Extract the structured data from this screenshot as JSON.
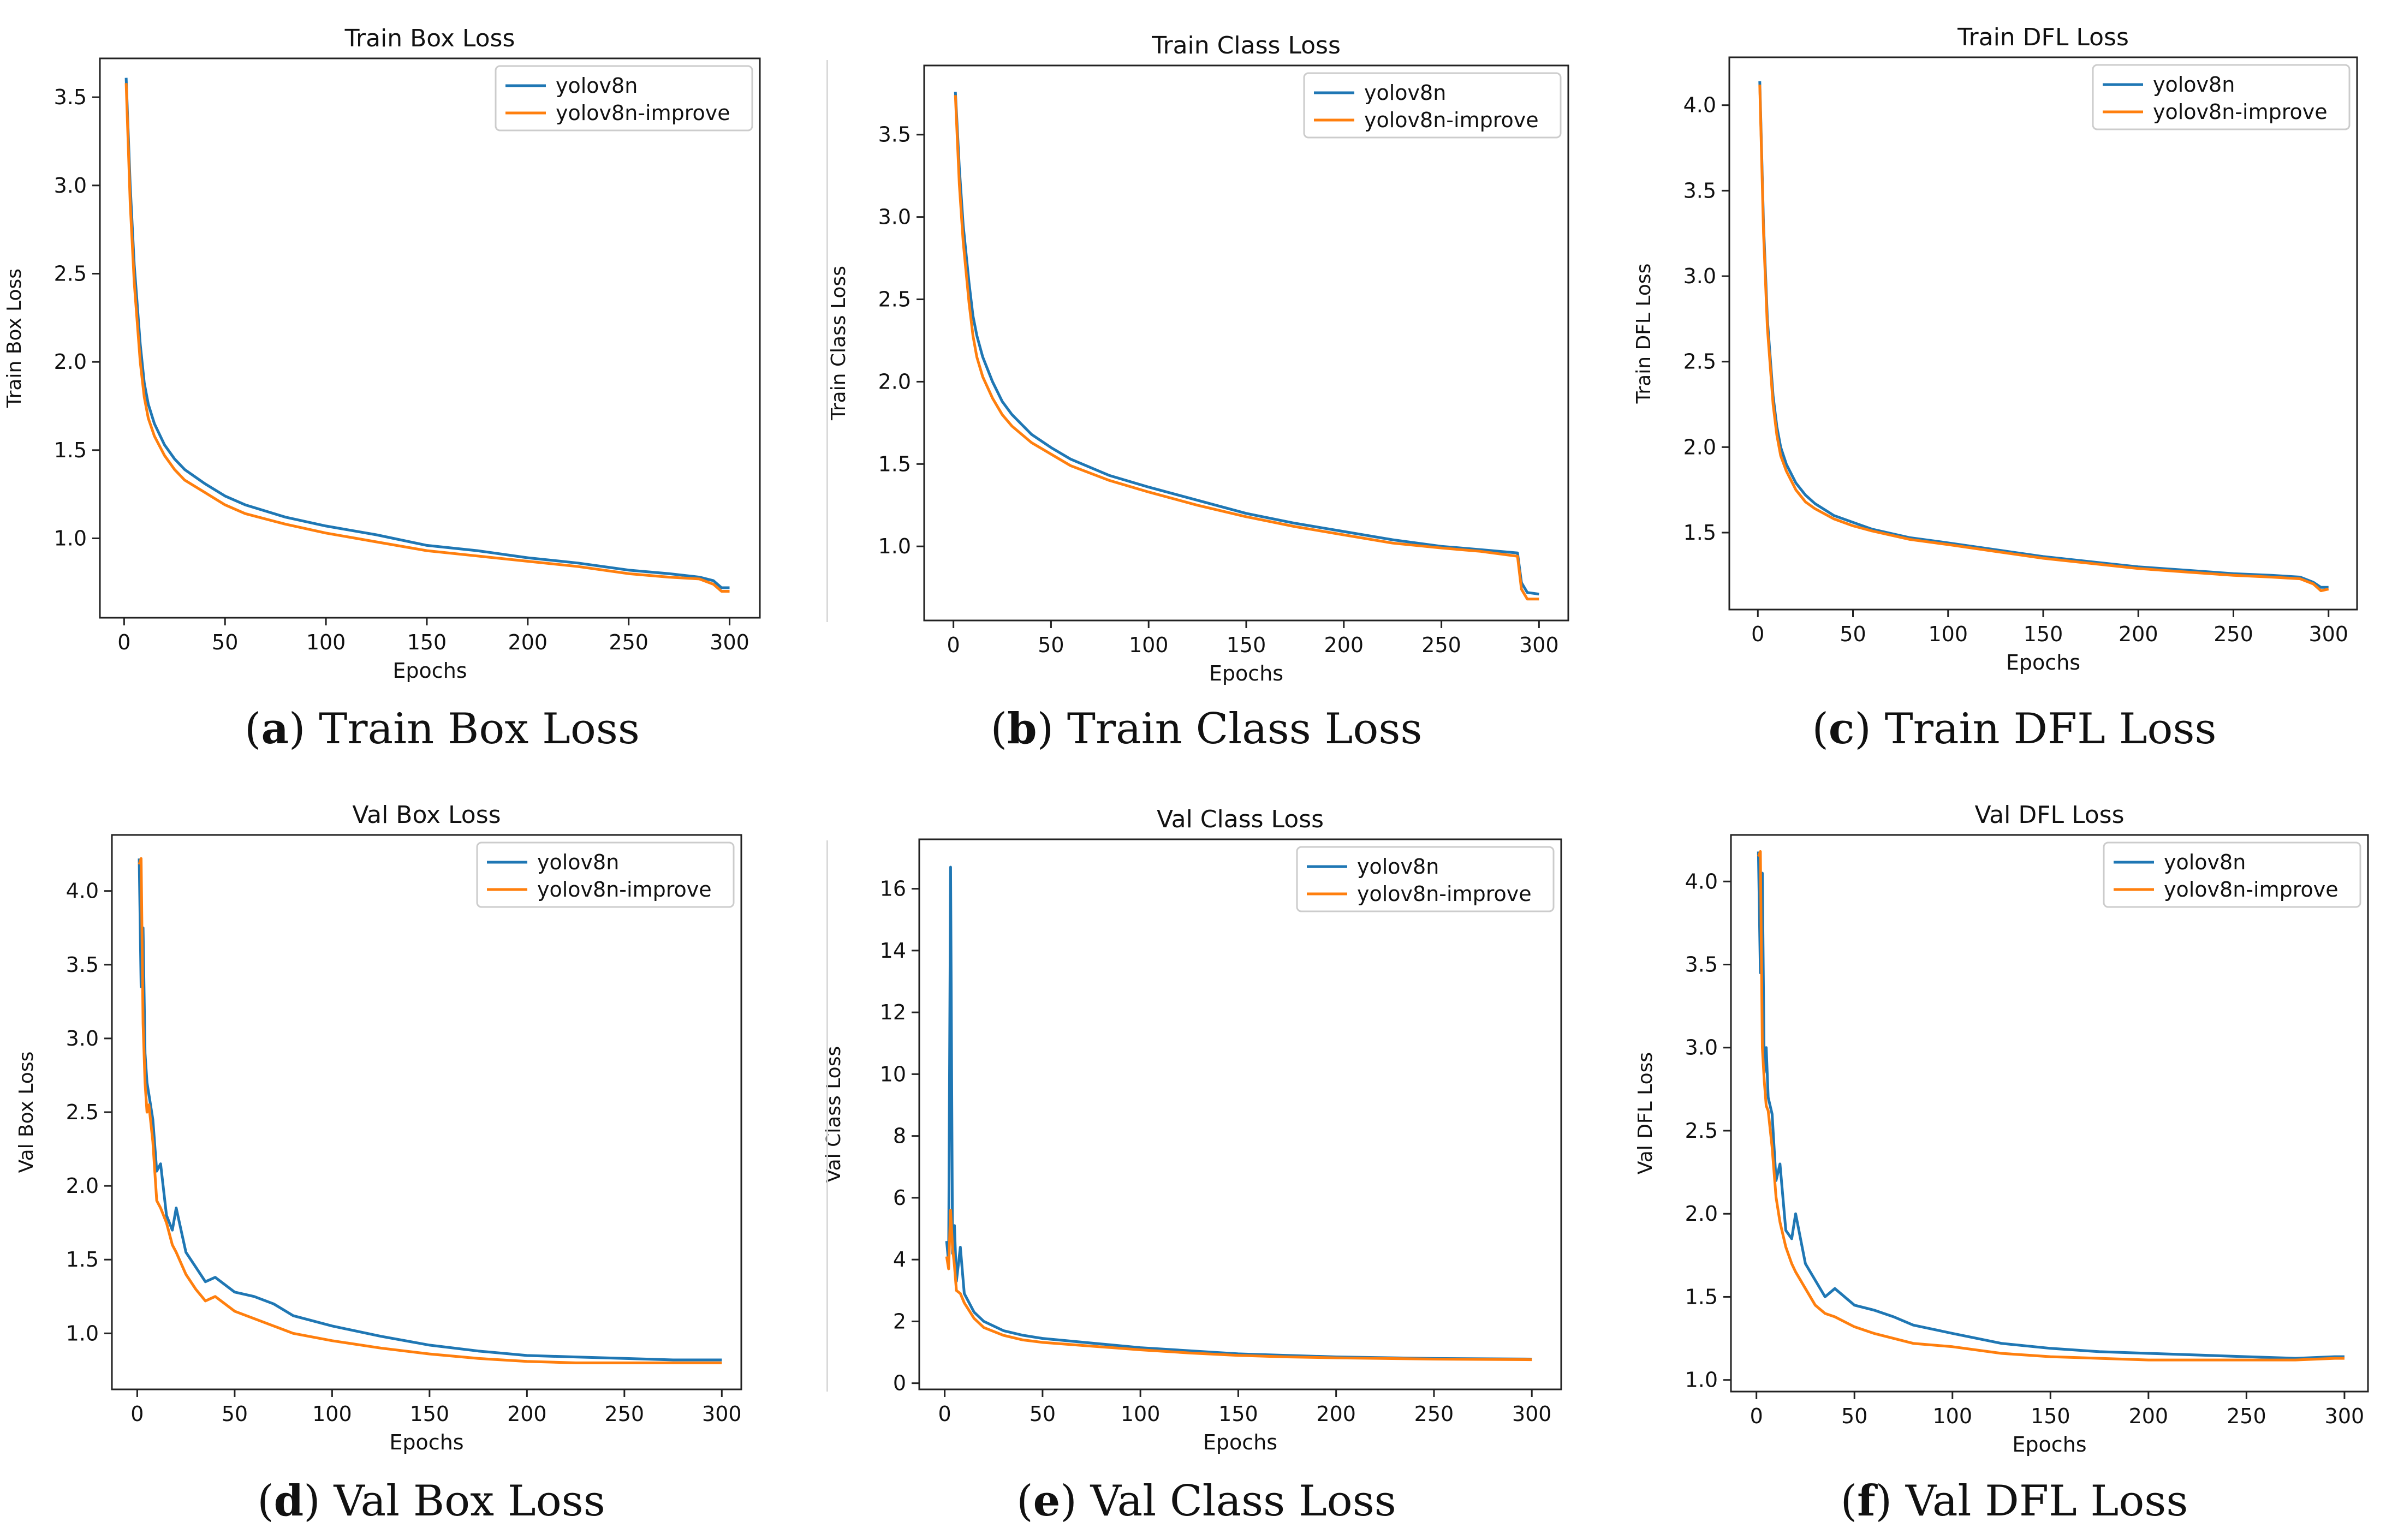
{
  "colors": {
    "yolov8n": "#1f77b4",
    "yolov8n_improve": "#ff7f0e"
  },
  "legend_labels": [
    "yolov8n",
    "yolov8n-improve"
  ],
  "panels": [
    {
      "letter": "a",
      "caption": "Train Box Loss"
    },
    {
      "letter": "b",
      "caption": "Train Class Loss"
    },
    {
      "letter": "c",
      "caption": "Train DFL Loss"
    },
    {
      "letter": "d",
      "caption": "Val Box Loss"
    },
    {
      "letter": "e",
      "caption": "Val Class Loss"
    },
    {
      "letter": "f",
      "caption": "Val DFL Loss"
    }
  ],
  "chart_data": [
    {
      "type": "line",
      "title": "Train Box Loss",
      "xlabel": "Epochs",
      "ylabel": "Train Box Loss",
      "xlim": [
        -12,
        315
      ],
      "ylim": [
        0.55,
        3.72
      ],
      "xticks": [
        0,
        50,
        100,
        150,
        200,
        250,
        300
      ],
      "yticks": [
        1.0,
        1.5,
        2.0,
        2.5,
        3.0,
        3.5
      ],
      "legend": "top-right",
      "series": [
        {
          "name": "yolov8n",
          "x": [
            1,
            3,
            5,
            8,
            10,
            12,
            15,
            20,
            25,
            30,
            40,
            50,
            60,
            80,
            100,
            125,
            150,
            175,
            200,
            225,
            250,
            270,
            285,
            292,
            296,
            300
          ],
          "y": [
            3.61,
            3.0,
            2.55,
            2.1,
            1.88,
            1.76,
            1.65,
            1.53,
            1.45,
            1.39,
            1.31,
            1.24,
            1.19,
            1.12,
            1.07,
            1.02,
            0.96,
            0.93,
            0.89,
            0.86,
            0.82,
            0.8,
            0.78,
            0.76,
            0.72,
            0.72
          ]
        },
        {
          "name": "yolov8n-improve",
          "x": [
            1,
            3,
            5,
            8,
            10,
            12,
            15,
            20,
            25,
            30,
            40,
            50,
            60,
            80,
            100,
            125,
            150,
            175,
            200,
            225,
            250,
            270,
            285,
            292,
            296,
            300
          ],
          "y": [
            3.58,
            2.9,
            2.45,
            2.0,
            1.8,
            1.68,
            1.58,
            1.47,
            1.39,
            1.33,
            1.26,
            1.19,
            1.14,
            1.08,
            1.03,
            0.98,
            0.93,
            0.9,
            0.87,
            0.84,
            0.8,
            0.78,
            0.77,
            0.74,
            0.7,
            0.7
          ]
        }
      ]
    },
    {
      "type": "line",
      "title": "Train Class Loss",
      "xlabel": "Epochs",
      "ylabel": "Train Class Loss",
      "xlim": [
        -15,
        315
      ],
      "ylim": [
        0.55,
        3.92
      ],
      "xticks": [
        0,
        50,
        100,
        150,
        200,
        250,
        300
      ],
      "yticks": [
        1.0,
        1.5,
        2.0,
        2.5,
        3.0,
        3.5
      ],
      "legend": "top-right",
      "series": [
        {
          "name": "yolov8n",
          "x": [
            1,
            3,
            5,
            8,
            10,
            12,
            15,
            20,
            25,
            30,
            40,
            50,
            60,
            80,
            100,
            125,
            150,
            175,
            200,
            225,
            250,
            270,
            289,
            291,
            294,
            300
          ],
          "y": [
            3.76,
            3.3,
            2.95,
            2.6,
            2.4,
            2.28,
            2.15,
            2.0,
            1.88,
            1.8,
            1.68,
            1.6,
            1.53,
            1.43,
            1.36,
            1.28,
            1.2,
            1.14,
            1.09,
            1.04,
            1.0,
            0.98,
            0.96,
            0.78,
            0.72,
            0.71
          ]
        },
        {
          "name": "yolov8n-improve",
          "x": [
            1,
            3,
            5,
            8,
            10,
            12,
            15,
            20,
            25,
            30,
            40,
            50,
            60,
            80,
            100,
            125,
            150,
            175,
            200,
            225,
            250,
            270,
            289,
            291,
            294,
            300
          ],
          "y": [
            3.74,
            3.2,
            2.85,
            2.48,
            2.28,
            2.15,
            2.03,
            1.9,
            1.8,
            1.73,
            1.63,
            1.56,
            1.49,
            1.4,
            1.33,
            1.25,
            1.18,
            1.12,
            1.07,
            1.02,
            0.99,
            0.97,
            0.94,
            0.74,
            0.68,
            0.68
          ]
        }
      ]
    },
    {
      "type": "line",
      "title": "Train DFL Loss",
      "xlabel": "Epochs",
      "ylabel": "Train DFL Loss",
      "xlim": [
        -15,
        315
      ],
      "ylim": [
        1.05,
        4.28
      ],
      "xticks": [
        0,
        50,
        100,
        150,
        200,
        250,
        300
      ],
      "yticks": [
        1.5,
        2.0,
        2.5,
        3.0,
        3.5,
        4.0
      ],
      "legend": "top-right",
      "series": [
        {
          "name": "yolov8n",
          "x": [
            1,
            3,
            5,
            8,
            10,
            12,
            15,
            20,
            25,
            30,
            40,
            50,
            60,
            80,
            100,
            125,
            150,
            175,
            200,
            225,
            250,
            270,
            285,
            292,
            296,
            300
          ],
          "y": [
            4.14,
            3.3,
            2.75,
            2.3,
            2.12,
            2.0,
            1.9,
            1.79,
            1.72,
            1.67,
            1.6,
            1.56,
            1.52,
            1.47,
            1.44,
            1.4,
            1.36,
            1.33,
            1.3,
            1.28,
            1.26,
            1.25,
            1.24,
            1.21,
            1.18,
            1.18
          ]
        },
        {
          "name": "yolov8n-improve",
          "x": [
            1,
            3,
            5,
            8,
            10,
            12,
            15,
            20,
            25,
            30,
            40,
            50,
            60,
            80,
            100,
            125,
            150,
            175,
            200,
            225,
            250,
            270,
            285,
            292,
            296,
            300
          ],
          "y": [
            4.12,
            3.25,
            2.7,
            2.25,
            2.07,
            1.95,
            1.86,
            1.75,
            1.68,
            1.64,
            1.58,
            1.54,
            1.51,
            1.46,
            1.43,
            1.39,
            1.35,
            1.32,
            1.29,
            1.27,
            1.25,
            1.24,
            1.23,
            1.2,
            1.16,
            1.17
          ]
        }
      ]
    },
    {
      "type": "line",
      "title": "Val Box Loss",
      "xlabel": "Epochs",
      "ylabel": "Val Box Loss",
      "xlim": [
        -13,
        310
      ],
      "ylim": [
        0.62,
        4.38
      ],
      "xticks": [
        0,
        50,
        100,
        150,
        200,
        250,
        300
      ],
      "yticks": [
        1.0,
        1.5,
        2.0,
        2.5,
        3.0,
        3.5,
        4.0
      ],
      "legend": "top-right",
      "series": [
        {
          "name": "yolov8n",
          "x": [
            1,
            2,
            3,
            4,
            5,
            6,
            8,
            10,
            12,
            15,
            18,
            20,
            25,
            30,
            35,
            40,
            50,
            60,
            70,
            80,
            100,
            125,
            150,
            175,
            200,
            225,
            250,
            275,
            300
          ],
          "y": [
            4.22,
            3.35,
            3.75,
            2.9,
            2.7,
            2.62,
            2.45,
            2.1,
            2.15,
            1.8,
            1.7,
            1.85,
            1.55,
            1.45,
            1.35,
            1.38,
            1.28,
            1.25,
            1.2,
            1.12,
            1.05,
            0.98,
            0.92,
            0.88,
            0.85,
            0.84,
            0.83,
            0.82,
            0.82
          ]
        },
        {
          "name": "yolov8n-improve",
          "x": [
            1,
            2,
            3,
            4,
            5,
            6,
            8,
            10,
            12,
            15,
            18,
            20,
            25,
            30,
            35,
            40,
            50,
            60,
            70,
            80,
            100,
            125,
            150,
            175,
            200,
            225,
            250,
            275,
            300
          ],
          "y": [
            4.18,
            4.22,
            3.1,
            2.7,
            2.5,
            2.55,
            2.3,
            1.9,
            1.85,
            1.75,
            1.6,
            1.55,
            1.4,
            1.3,
            1.22,
            1.25,
            1.15,
            1.1,
            1.05,
            1.0,
            0.95,
            0.9,
            0.86,
            0.83,
            0.81,
            0.8,
            0.8,
            0.8,
            0.8
          ]
        }
      ]
    },
    {
      "type": "line",
      "title": "Val Class Loss",
      "xlabel": "Epochs",
      "ylabel": "Val Class Loss",
      "xlim": [
        -13,
        315
      ],
      "ylim": [
        -0.2,
        17.6
      ],
      "xticks": [
        0,
        50,
        100,
        150,
        200,
        250,
        300
      ],
      "yticks": [
        0,
        2,
        4,
        6,
        8,
        10,
        12,
        14,
        16
      ],
      "legend": "top-right",
      "series": [
        {
          "name": "yolov8n",
          "x": [
            1,
            2,
            3,
            4,
            5,
            6,
            8,
            10,
            15,
            20,
            30,
            40,
            50,
            75,
            100,
            125,
            150,
            175,
            200,
            250,
            300
          ],
          "y": [
            4.6,
            3.9,
            16.7,
            4.2,
            5.1,
            3.3,
            4.4,
            2.9,
            2.3,
            2.0,
            1.7,
            1.55,
            1.45,
            1.3,
            1.15,
            1.05,
            0.95,
            0.9,
            0.85,
            0.8,
            0.78
          ]
        },
        {
          "name": "yolov8n-improve",
          "x": [
            1,
            2,
            3,
            4,
            5,
            6,
            8,
            10,
            15,
            20,
            30,
            40,
            50,
            75,
            100,
            125,
            150,
            175,
            200,
            250,
            300
          ],
          "y": [
            4.1,
            3.7,
            5.6,
            4.4,
            3.8,
            3.0,
            2.9,
            2.6,
            2.1,
            1.8,
            1.55,
            1.4,
            1.32,
            1.2,
            1.08,
            0.98,
            0.9,
            0.85,
            0.82,
            0.78,
            0.76
          ]
        }
      ]
    },
    {
      "type": "line",
      "title": "Val DFL Loss",
      "xlabel": "Epochs",
      "ylabel": "Val DFL Loss",
      "xlim": [
        -13,
        312
      ],
      "ylim": [
        0.93,
        4.28
      ],
      "xticks": [
        0,
        50,
        100,
        150,
        200,
        250,
        300
      ],
      "yticks": [
        1.0,
        1.5,
        2.0,
        2.5,
        3.0,
        3.5,
        4.0
      ],
      "legend": "top-right",
      "series": [
        {
          "name": "yolov8n",
          "x": [
            1,
            2,
            3,
            4,
            5,
            6,
            8,
            10,
            12,
            15,
            18,
            20,
            25,
            30,
            35,
            40,
            50,
            60,
            70,
            80,
            100,
            125,
            150,
            175,
            200,
            225,
            250,
            275,
            295,
            300
          ],
          "y": [
            4.18,
            3.45,
            4.05,
            2.85,
            3.0,
            2.7,
            2.6,
            2.2,
            2.3,
            1.9,
            1.85,
            2.0,
            1.7,
            1.6,
            1.5,
            1.55,
            1.45,
            1.42,
            1.38,
            1.33,
            1.28,
            1.22,
            1.19,
            1.17,
            1.16,
            1.15,
            1.14,
            1.13,
            1.14,
            1.14
          ]
        },
        {
          "name": "yolov8n-improve",
          "x": [
            1,
            2,
            3,
            4,
            5,
            6,
            8,
            10,
            12,
            15,
            18,
            20,
            25,
            30,
            35,
            40,
            50,
            60,
            70,
            80,
            100,
            125,
            150,
            175,
            200,
            225,
            250,
            275,
            295,
            300
          ],
          "y": [
            4.15,
            4.18,
            3.0,
            2.8,
            2.65,
            2.62,
            2.4,
            2.1,
            1.95,
            1.8,
            1.7,
            1.65,
            1.55,
            1.45,
            1.4,
            1.38,
            1.32,
            1.28,
            1.25,
            1.22,
            1.2,
            1.16,
            1.14,
            1.13,
            1.12,
            1.12,
            1.12,
            1.12,
            1.13,
            1.13
          ]
        }
      ]
    }
  ]
}
